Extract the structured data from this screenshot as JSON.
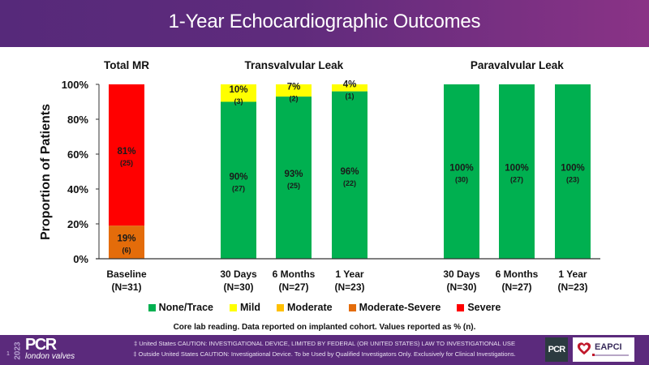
{
  "title": "1-Year Echocardiographic Outcomes",
  "chart_data": {
    "type": "bar",
    "stacked": true,
    "title": "1-Year Echocardiographic Outcomes",
    "xlabel": "",
    "ylabel": "Proportion of Patients",
    "ylim": [
      0,
      100
    ],
    "yticks": [
      0,
      20,
      40,
      60,
      80,
      100
    ],
    "ytick_labels": [
      "0%",
      "20%",
      "40%",
      "60%",
      "80%",
      "100%"
    ],
    "grid": false,
    "legend_position": "bottom",
    "groups": [
      {
        "title": "Total MR",
        "categories": [
          0
        ]
      },
      {
        "title": "Transvalvular Leak",
        "categories": [
          1,
          2,
          3
        ]
      },
      {
        "title": "Paravalvular Leak",
        "categories": [
          4,
          5,
          6
        ]
      }
    ],
    "categories": [
      {
        "label": "Baseline",
        "n_label": "(N=31)"
      },
      {
        "label": "30 Days",
        "n_label": "(N=30)"
      },
      {
        "label": "6 Months",
        "n_label": "(N=27)"
      },
      {
        "label": "1 Year",
        "n_label": "(N=23)"
      },
      {
        "label": "30 Days",
        "n_label": "(N=30)"
      },
      {
        "label": "6 Months",
        "n_label": "(N=27)"
      },
      {
        "label": "1 Year",
        "n_label": "(N=23)"
      }
    ],
    "series": [
      {
        "name": "None/Trace",
        "color": "#00B050",
        "values": [
          0,
          90,
          93,
          96,
          100,
          100,
          100
        ],
        "counts": [
          0,
          27,
          25,
          22,
          30,
          27,
          23
        ]
      },
      {
        "name": "Mild",
        "color": "#FFFF00",
        "values": [
          0,
          10,
          7,
          4,
          0,
          0,
          0
        ],
        "counts": [
          0,
          3,
          2,
          1,
          0,
          0,
          0
        ]
      },
      {
        "name": "Moderate",
        "color": "#FFC000",
        "values": [
          0,
          0,
          0,
          0,
          0,
          0,
          0
        ],
        "counts": [
          0,
          0,
          0,
          0,
          0,
          0,
          0
        ]
      },
      {
        "name": "Moderate-Severe",
        "color": "#E46C0A",
        "values": [
          19,
          0,
          0,
          0,
          0,
          0,
          0
        ],
        "counts": [
          6,
          0,
          0,
          0,
          0,
          0,
          0
        ]
      },
      {
        "name": "Severe",
        "color": "#FF0000",
        "values": [
          81,
          0,
          0,
          0,
          0,
          0,
          0
        ],
        "counts": [
          25,
          0,
          0,
          0,
          0,
          0,
          0
        ]
      }
    ],
    "footnote": "Core lab reading. Data reported on implanted cohort. Values reported as % (n)."
  },
  "footer": {
    "slide_number": "1",
    "year": "2023",
    "brand": "PCR",
    "brand_sub": "london valves",
    "caution_us": "‡ United States CAUTION: INVESTIGATIONAL DEVICE, LIMITED BY FEDERAL (OR UNITED STATES) LAW TO INVESTIGATIONAL USE",
    "caution_ous": "‡ Outside United States CAUTION: Investigational Device. To be Used by Qualified Investigators Only. Exclusively for Clinical Investigations.",
    "partner_pcr": "PCR",
    "partner_eapci": "EAPCI"
  }
}
